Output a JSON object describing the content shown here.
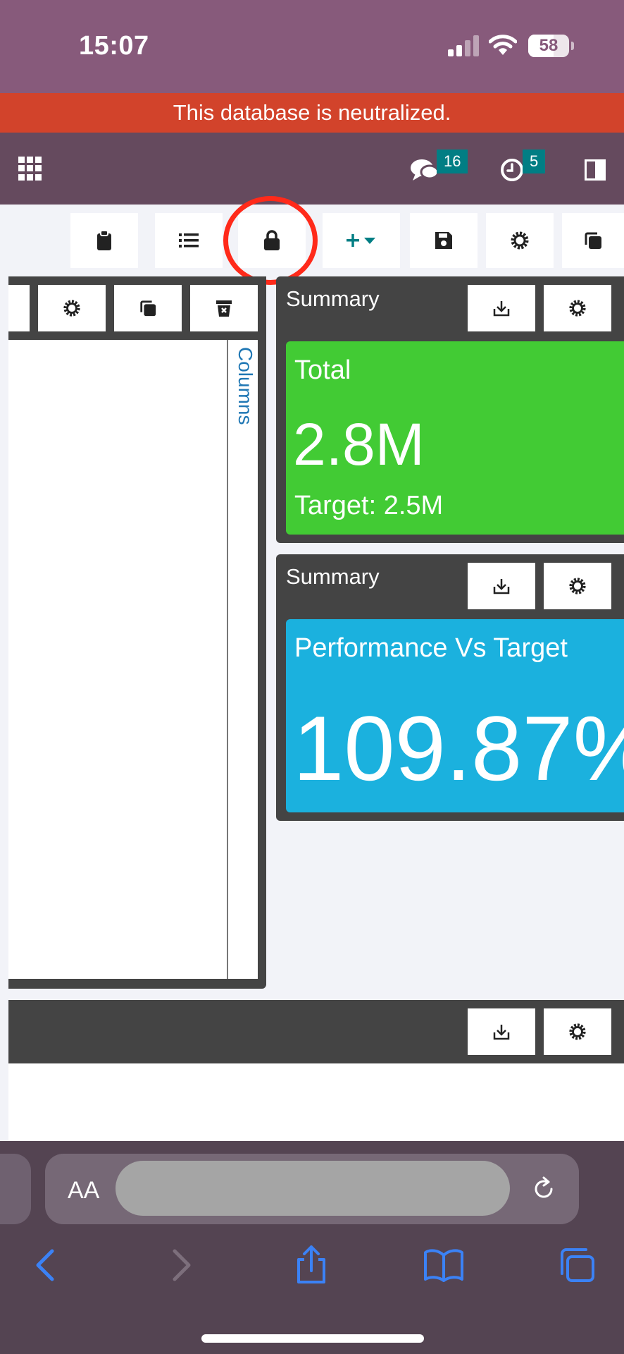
{
  "status_bar": {
    "time": "15:07",
    "battery": "58"
  },
  "banner": {
    "text": "This database is neutralized."
  },
  "navbar": {
    "messages_count": "16",
    "activities_count": "5"
  },
  "dashboard": {
    "columns_label": "Columns",
    "cards": [
      {
        "title": "Summary",
        "kpi_label": "Total",
        "kpi_value": "2.8M",
        "kpi_target": "Target: 2.5M",
        "color": "#42cb34"
      },
      {
        "title": "Summary",
        "kpi_label": "Performance Vs Target",
        "kpi_value": "109.87%",
        "color": "#1bb1de"
      }
    ]
  },
  "browser": {
    "text_size_label": "AA"
  },
  "colors": {
    "odoo_purple": "#875a7b",
    "banner_red": "#d2432b",
    "badge_teal": "#017e84",
    "annotation_red": "#ff2a1a"
  }
}
